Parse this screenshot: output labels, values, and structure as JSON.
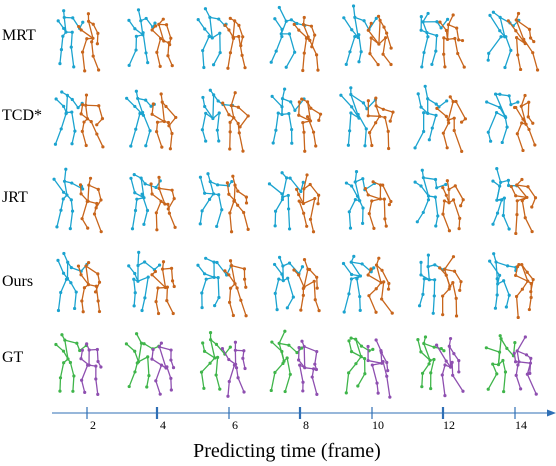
{
  "rows": [
    {
      "label": "MRT",
      "colors": [
        "#1ba3cf",
        "#c8651b"
      ]
    },
    {
      "label": "TCD*",
      "colors": [
        "#1ba3cf",
        "#c8651b"
      ]
    },
    {
      "label": "JRT",
      "colors": [
        "#1ba3cf",
        "#c8651b"
      ]
    },
    {
      "label": "Ours",
      "colors": [
        "#1ba3cf",
        "#c8651b"
      ]
    },
    {
      "label": "GT",
      "colors": [
        "#3fb54a",
        "#8e4fb0"
      ]
    }
  ],
  "axis": {
    "title": "Predicting time (frame)",
    "ticks": [
      "2",
      "4",
      "6",
      "8",
      "10",
      "12",
      "14"
    ],
    "color": "#2f6fb5"
  }
}
